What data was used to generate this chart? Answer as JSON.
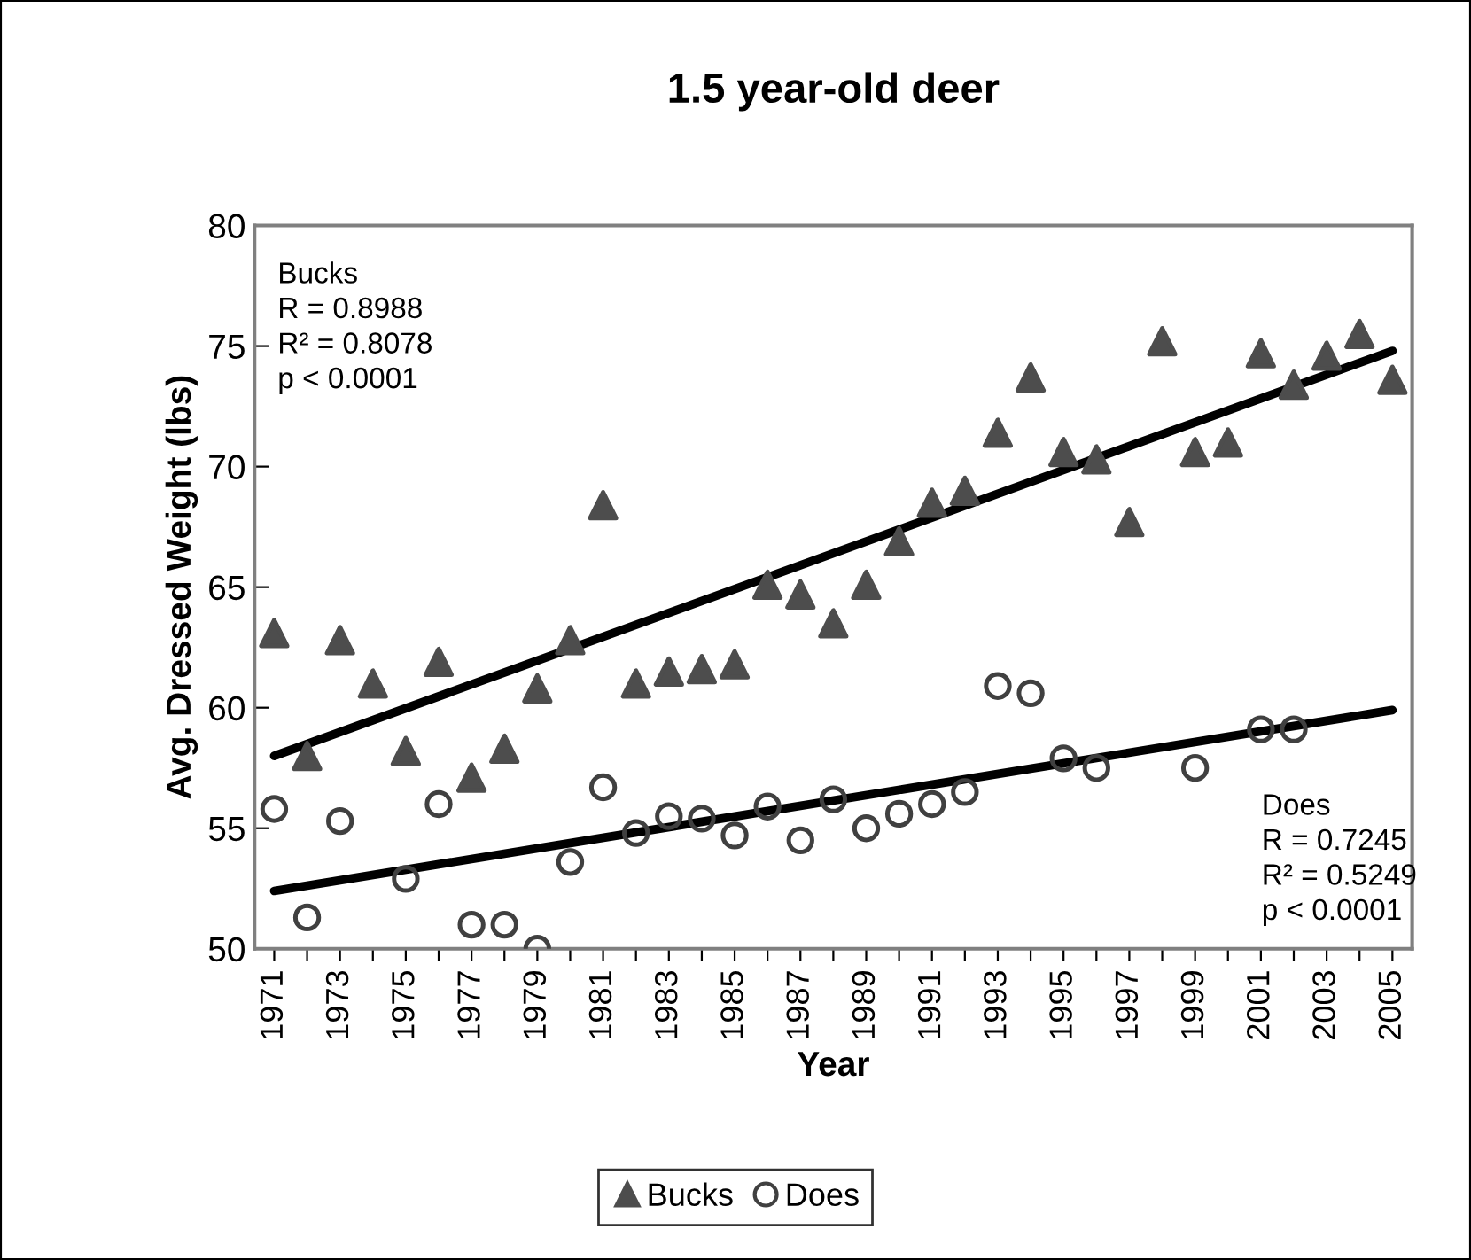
{
  "chart_data": {
    "type": "scatter",
    "title": "1.5 year-old deer",
    "xlabel": "Year",
    "ylabel": "Avg. Dressed Weight (lbs)",
    "xlim": [
      1970.4,
      2005.6
    ],
    "xticks": [
      1971,
      {
        "value": 1972,
        "label": null
      },
      1973,
      {
        "value": 1974,
        "label": null
      },
      1975,
      {
        "value": 1976,
        "label": null
      },
      1977,
      {
        "value": 1978,
        "label": null
      },
      1979,
      {
        "value": 1980,
        "label": null
      },
      1981,
      {
        "value": 1982,
        "label": null
      },
      1983,
      {
        "value": 1984,
        "label": null
      },
      1985,
      {
        "value": 1986,
        "label": null
      },
      1987,
      {
        "value": 1988,
        "label": null
      },
      1989,
      {
        "value": 1990,
        "label": null
      },
      1991,
      {
        "value": 1992,
        "label": null
      },
      1993,
      {
        "value": 1994,
        "label": null
      },
      1995,
      {
        "value": 1996,
        "label": null
      },
      1997,
      {
        "value": 1998,
        "label": null
      },
      1999,
      {
        "value": 2000,
        "label": null
      },
      2001,
      {
        "value": 2002,
        "label": null
      },
      2003,
      {
        "value": 2004,
        "label": null
      },
      2005
    ],
    "ylim": [
      50,
      80
    ],
    "yticks": [
      50,
      55,
      60,
      65,
      70,
      75,
      80
    ],
    "grid": false,
    "legend": "bottom",
    "x": [
      1971,
      1972,
      1973,
      1974,
      1975,
      1976,
      1977,
      1978,
      1979,
      1980,
      1981,
      1982,
      1983,
      1984,
      1985,
      1986,
      1987,
      1988,
      1989,
      1990,
      1991,
      1992,
      1993,
      1994,
      1995,
      1996,
      1997,
      1998,
      1999,
      2000,
      2001,
      2002,
      2003,
      2004,
      2005
    ],
    "series": [
      {
        "name": "Bucks",
        "color": "#4d4d4d",
        "marker": "triangle",
        "values": [
          63.1,
          58.0,
          62.8,
          61.0,
          58.2,
          61.9,
          57.1,
          58.3,
          60.8,
          62.8,
          68.4,
          61.0,
          61.5,
          61.6,
          61.8,
          65.1,
          64.7,
          63.5,
          65.1,
          66.9,
          68.5,
          69.0,
          71.4,
          73.7,
          70.6,
          70.3,
          67.7,
          75.2,
          70.6,
          71.0,
          74.7,
          73.4,
          74.6,
          75.5,
          73.6
        ]
      },
      {
        "name": "Does",
        "color": "#404040",
        "marker": "circle",
        "values": [
          55.8,
          51.3,
          55.3,
          null,
          52.9,
          56.0,
          51.0,
          51.0,
          50.0,
          53.6,
          56.7,
          54.8,
          55.5,
          55.4,
          54.7,
          55.9,
          54.5,
          56.2,
          55.0,
          55.6,
          56.0,
          56.5,
          60.9,
          60.6,
          57.9,
          57.5,
          null,
          null,
          57.5,
          null,
          59.1,
          59.1,
          null,
          null,
          null
        ]
      },
      {
        "type": "line",
        "color": "#000000",
        "line_style": "solid",
        "values": [
          58.0,
          null,
          null,
          null,
          null,
          null,
          null,
          null,
          null,
          null,
          null,
          null,
          null,
          null,
          null,
          null,
          null,
          null,
          null,
          null,
          null,
          null,
          null,
          null,
          null,
          null,
          null,
          null,
          null,
          null,
          null,
          null,
          null,
          null,
          74.8
        ]
      },
      {
        "type": "line",
        "color": "#000000",
        "line_style": "solid",
        "values": [
          52.4,
          null,
          null,
          null,
          null,
          null,
          null,
          null,
          null,
          null,
          null,
          null,
          null,
          null,
          null,
          null,
          null,
          null,
          null,
          null,
          null,
          null,
          null,
          null,
          null,
          null,
          null,
          null,
          null,
          null,
          null,
          null,
          null,
          null,
          59.9
        ]
      }
    ],
    "annotations": [
      "Bucks\nR = 0.8988\nR² = 0.8078\np < 0.0001",
      "Does\nR = 0.7245\nR² = 0.5249\np < 0.0001"
    ]
  }
}
